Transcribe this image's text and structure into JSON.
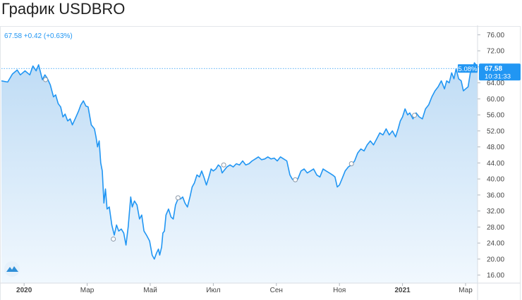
{
  "title": "График USDBRO",
  "quote": "67.58 +0.42 (+0.63%)",
  "current": {
    "price_label": "67.58",
    "time_label": "10:31:33",
    "percent_label": "5.08%"
  },
  "colors": {
    "line": "#2196f3",
    "area_top": "#bfdcf5",
    "area_bottom": "#f1f8fe"
  },
  "chart_data": {
    "type": "area",
    "title": "График USDBRO",
    "xlabel": "",
    "ylabel": "",
    "ylim": [
      14,
      78
    ],
    "xlim": [
      0,
      15.1
    ],
    "x_unit": "months since January 2020",
    "y_ticks": [
      "76.00",
      "72.00",
      "68.00",
      "64.00",
      "60.00",
      "56.00",
      "52.00",
      "48.00",
      "44.00",
      "40.00",
      "36.00",
      "32.00",
      "28.00",
      "24.00",
      "20.00",
      "16.00"
    ],
    "x_ticks": [
      {
        "label": "2020",
        "x": 0.72,
        "bold": true
      },
      {
        "label": "Мар",
        "x": 2.72
      },
      {
        "label": "Май",
        "x": 4.72
      },
      {
        "label": "Июл",
        "x": 6.72
      },
      {
        "label": "Сен",
        "x": 8.72
      },
      {
        "label": "Ноя",
        "x": 10.72
      },
      {
        "label": "2021",
        "x": 12.72,
        "bold": true
      },
      {
        "label": "Мар",
        "x": 14.72
      }
    ],
    "grid": false,
    "series": [
      {
        "name": "",
        "points": [
          [
            0.0,
            64.5
          ],
          [
            0.2,
            64.2
          ],
          [
            0.35,
            66.2
          ],
          [
            0.5,
            67.2
          ],
          [
            0.6,
            66.0
          ],
          [
            0.75,
            67.0
          ],
          [
            0.9,
            66.0
          ],
          [
            1.0,
            68.2
          ],
          [
            1.1,
            67.0
          ],
          [
            1.18,
            68.5
          ],
          [
            1.3,
            64.8
          ],
          [
            1.38,
            66.0
          ],
          [
            1.45,
            65.2
          ],
          [
            1.55,
            63.5
          ],
          [
            1.65,
            60.5
          ],
          [
            1.72,
            61.0
          ],
          [
            1.8,
            58.8
          ],
          [
            1.88,
            58.0
          ],
          [
            1.95,
            55.5
          ],
          [
            2.02,
            56.2
          ],
          [
            2.1,
            54.5
          ],
          [
            2.18,
            55.0
          ],
          [
            2.25,
            53.5
          ],
          [
            2.35,
            55.2
          ],
          [
            2.45,
            57.0
          ],
          [
            2.52,
            58.5
          ],
          [
            2.6,
            59.5
          ],
          [
            2.68,
            58.2
          ],
          [
            2.75,
            58.0
          ],
          [
            2.85,
            53.5
          ],
          [
            2.95,
            52.5
          ],
          [
            3.0,
            50.5
          ],
          [
            3.05,
            48.0
          ],
          [
            3.1,
            49.5
          ],
          [
            3.15,
            44.0
          ],
          [
            3.2,
            42.0
          ],
          [
            3.25,
            34.0
          ],
          [
            3.3,
            37.5
          ],
          [
            3.35,
            32.5
          ],
          [
            3.42,
            33.0
          ],
          [
            3.5,
            28.5
          ],
          [
            3.58,
            26.0
          ],
          [
            3.65,
            28.5
          ],
          [
            3.72,
            27.0
          ],
          [
            3.8,
            27.5
          ],
          [
            3.88,
            26.5
          ],
          [
            3.95,
            23.5
          ],
          [
            4.02,
            28.0
          ],
          [
            4.1,
            35.5
          ],
          [
            4.15,
            33.0
          ],
          [
            4.22,
            34.5
          ],
          [
            4.3,
            33.5
          ],
          [
            4.38,
            30.0
          ],
          [
            4.45,
            31.0
          ],
          [
            4.52,
            27.0
          ],
          [
            4.6,
            26.0
          ],
          [
            4.7,
            24.5
          ],
          [
            4.78,
            21.0
          ],
          [
            4.85,
            20.0
          ],
          [
            4.92,
            21.5
          ],
          [
            4.98,
            22.5
          ],
          [
            5.02,
            21.0
          ],
          [
            5.08,
            23.0
          ],
          [
            5.12,
            26.5
          ],
          [
            5.17,
            27.0
          ],
          [
            5.22,
            31.0
          ],
          [
            5.3,
            32.5
          ],
          [
            5.38,
            30.5
          ],
          [
            5.45,
            30.0
          ],
          [
            5.52,
            33.5
          ],
          [
            5.6,
            35.0
          ],
          [
            5.68,
            35.0
          ],
          [
            5.75,
            35.5
          ],
          [
            5.82,
            34.0
          ],
          [
            5.9,
            33.0
          ],
          [
            5.98,
            35.5
          ],
          [
            6.05,
            38.0
          ],
          [
            6.12,
            39.0
          ],
          [
            6.2,
            41.0
          ],
          [
            6.28,
            40.5
          ],
          [
            6.35,
            42.0
          ],
          [
            6.42,
            40.5
          ],
          [
            6.5,
            38.5
          ],
          [
            6.58,
            40.5
          ],
          [
            6.65,
            42.5
          ],
          [
            6.72,
            42.0
          ],
          [
            6.8,
            42.5
          ],
          [
            6.88,
            43.5
          ],
          [
            6.95,
            43.0
          ],
          [
            7.0,
            41.5
          ],
          [
            7.05,
            42.0
          ],
          [
            7.15,
            43.0
          ],
          [
            7.25,
            43.5
          ],
          [
            7.35,
            43.0
          ],
          [
            7.45,
            43.8
          ],
          [
            7.55,
            43.5
          ],
          [
            7.65,
            44.5
          ],
          [
            7.75,
            43.5
          ],
          [
            7.85,
            43.8
          ],
          [
            7.95,
            44.5
          ],
          [
            8.05,
            45.0
          ],
          [
            8.15,
            45.5
          ],
          [
            8.25,
            44.8
          ],
          [
            8.35,
            45.0
          ],
          [
            8.45,
            45.5
          ],
          [
            8.55,
            45.0
          ],
          [
            8.65,
            45.2
          ],
          [
            8.75,
            44.5
          ],
          [
            8.85,
            45.5
          ],
          [
            8.95,
            45.0
          ],
          [
            9.05,
            44.5
          ],
          [
            9.15,
            41.0
          ],
          [
            9.22,
            40.0
          ],
          [
            9.3,
            39.5
          ],
          [
            9.4,
            40.0
          ],
          [
            9.5,
            42.0
          ],
          [
            9.6,
            42.5
          ],
          [
            9.7,
            41.5
          ],
          [
            9.8,
            42.0
          ],
          [
            9.9,
            42.5
          ],
          [
            10.0,
            41.0
          ],
          [
            10.1,
            40.5
          ],
          [
            10.2,
            42.5
          ],
          [
            10.3,
            42.0
          ],
          [
            10.4,
            41.5
          ],
          [
            10.5,
            41.0
          ],
          [
            10.58,
            40.5
          ],
          [
            10.65,
            38.0
          ],
          [
            10.72,
            38.5
          ],
          [
            10.8,
            40.0
          ],
          [
            10.9,
            42.0
          ],
          [
            11.0,
            43.0
          ],
          [
            11.1,
            43.5
          ],
          [
            11.2,
            44.5
          ],
          [
            11.3,
            46.5
          ],
          [
            11.4,
            47.5
          ],
          [
            11.5,
            47.0
          ],
          [
            11.6,
            48.5
          ],
          [
            11.7,
            49.5
          ],
          [
            11.8,
            48.5
          ],
          [
            11.9,
            50.0
          ],
          [
            12.0,
            51.5
          ],
          [
            12.1,
            51.0
          ],
          [
            12.2,
            52.5
          ],
          [
            12.3,
            51.0
          ],
          [
            12.4,
            52.0
          ],
          [
            12.5,
            50.5
          ],
          [
            12.58,
            52.5
          ],
          [
            12.65,
            54.5
          ],
          [
            12.72,
            55.5
          ],
          [
            12.8,
            57.5
          ],
          [
            12.88,
            56.0
          ],
          [
            12.95,
            56.5
          ],
          [
            13.05,
            55.0
          ],
          [
            13.15,
            56.5
          ],
          [
            13.25,
            55.5
          ],
          [
            13.35,
            55.0
          ],
          [
            13.45,
            57.5
          ],
          [
            13.55,
            58.5
          ],
          [
            13.65,
            60.5
          ],
          [
            13.75,
            62.0
          ],
          [
            13.85,
            63.0
          ],
          [
            13.95,
            64.5
          ],
          [
            14.05,
            62.5
          ],
          [
            14.12,
            64.5
          ],
          [
            14.2,
            64.0
          ],
          [
            14.28,
            66.5
          ],
          [
            14.35,
            65.0
          ],
          [
            14.42,
            67.5
          ],
          [
            14.5,
            65.0
          ],
          [
            14.58,
            64.5
          ],
          [
            14.65,
            62.0
          ],
          [
            14.72,
            62.5
          ],
          [
            14.8,
            63.0
          ],
          [
            14.88,
            67.0
          ],
          [
            14.95,
            67.5
          ],
          [
            15.0,
            69.0
          ],
          [
            15.05,
            68.5
          ],
          [
            15.1,
            67.58
          ]
        ]
      }
    ],
    "annotations": [
      {
        "x": 1.4,
        "y": 64.8
      },
      {
        "x": 3.55,
        "y": 25.0
      },
      {
        "x": 5.6,
        "y": 35.3
      },
      {
        "x": 7.05,
        "y": 43.5
      },
      {
        "x": 9.32,
        "y": 39.8
      },
      {
        "x": 11.1,
        "y": 43.8
      },
      {
        "x": 13.1,
        "y": 55.9
      }
    ],
    "last_value": 67.58
  }
}
